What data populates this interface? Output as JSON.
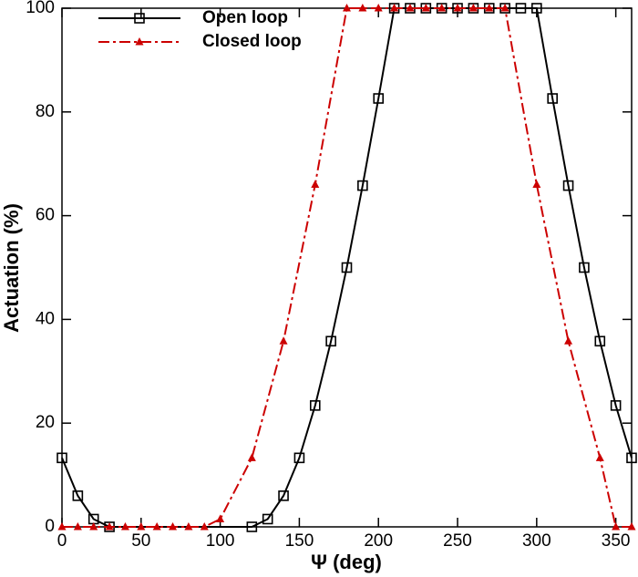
{
  "chart_data": {
    "type": "line",
    "xlabel": "Ψ (deg)",
    "ylabel": "Actuation (%)",
    "xlim": [
      0,
      360
    ],
    "ylim": [
      0,
      100
    ],
    "xticks": [
      0,
      50,
      100,
      150,
      200,
      250,
      300,
      350
    ],
    "yticks": [
      0,
      20,
      40,
      60,
      80,
      100
    ],
    "legend": "upper-left",
    "series": [
      {
        "name": "Open loop",
        "color": "#000000",
        "marker": "square",
        "dash": "solid",
        "x": [
          0,
          10,
          20,
          30,
          120,
          130,
          140,
          150,
          160,
          170,
          180,
          190,
          200,
          210,
          220,
          230,
          240,
          250,
          260,
          270,
          280,
          290,
          300,
          310,
          320,
          330,
          340,
          350,
          360
        ],
        "values": [
          13.3,
          6,
          1.5,
          0,
          0,
          1.5,
          6,
          13.3,
          23.4,
          35.8,
          50,
          65.8,
          82.6,
          100,
          100,
          100,
          100,
          100,
          100,
          100,
          100,
          100,
          100,
          82.6,
          65.8,
          50,
          35.8,
          23.4,
          13.3
        ]
      },
      {
        "name": "Closed loop",
        "color": "#cc0000",
        "marker": "triangle",
        "dash": "dashdot",
        "x": [
          0,
          10,
          20,
          30,
          40,
          50,
          60,
          70,
          80,
          90,
          100,
          120,
          140,
          160,
          180,
          190,
          200,
          210,
          220,
          230,
          240,
          250,
          260,
          270,
          280,
          300,
          320,
          340,
          350,
          360
        ],
        "values": [
          0,
          0,
          0,
          0,
          0,
          0,
          0,
          0,
          0,
          0,
          1.5,
          13.3,
          35.8,
          66,
          100,
          100,
          100,
          100,
          100,
          100,
          100,
          100,
          100,
          100,
          100,
          66,
          35.8,
          13.3,
          0,
          0
        ]
      }
    ]
  }
}
